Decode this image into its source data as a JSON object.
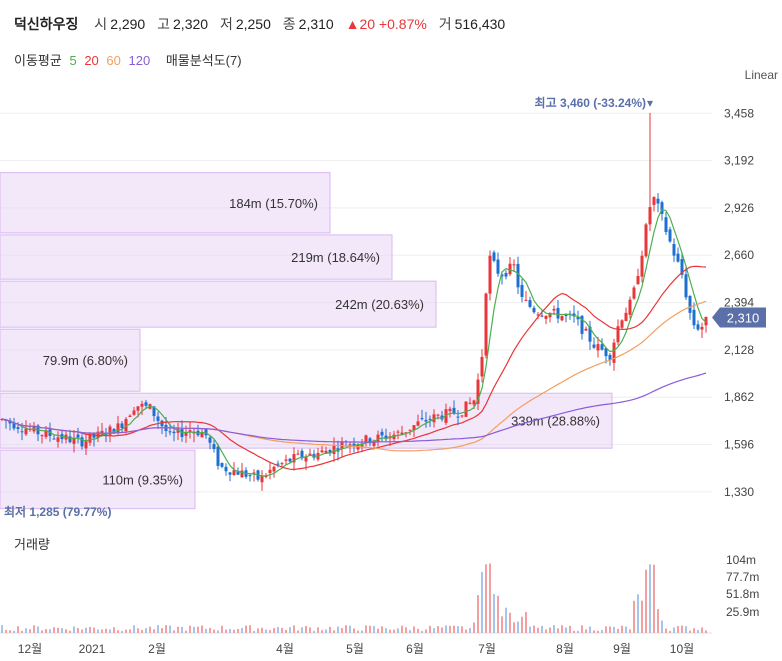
{
  "header": {
    "name": "덕신하우징",
    "open_label": "시",
    "open": "2,290",
    "high_label": "고",
    "high": "2,320",
    "low_label": "저",
    "low": "2,250",
    "close_label": "종",
    "close": "2,310",
    "change": "▲20 +0.87%",
    "volume_label": "거",
    "volume": "516,430"
  },
  "ma_legend": {
    "label": "이동평균",
    "ma5": "5",
    "ma20": "20",
    "ma60": "60",
    "ma120": "120",
    "profile": "매물분석도(7)"
  },
  "colors": {
    "up": "#e8363a",
    "down": "#1f6fd1",
    "ma5": "#4caf50",
    "ma20": "#e8363a",
    "ma60": "#f0a060",
    "ma120": "#8a5cd6",
    "profile": "#e9d4f5",
    "last_price_tag": "#5b6fa8"
  },
  "scale_label": "Linear",
  "volume_title": "거래량",
  "chart_data": {
    "type": "candlestick",
    "y_ticks": [
      "3,458",
      "3,192",
      "2,926",
      "2,660",
      "2,394",
      "2,128",
      "1,862",
      "1,596",
      "1,330"
    ],
    "ylim": [
      1200,
      3600
    ],
    "x_ticks": [
      "12월",
      "2021",
      "2월",
      "4월",
      "5월",
      "6월",
      "7월",
      "8월",
      "9월",
      "10월"
    ],
    "last_price": "2,310",
    "high_annotation": "최고 3,460 (-33.24%)",
    "low_annotation": "최저 1,285 (79.77%)",
    "volume_ticks": [
      "104m",
      "77.7m",
      "51.8m",
      "25.9m"
    ],
    "volume_profile": [
      {
        "price_low": 2780,
        "price_high": 3130,
        "label": "184m (15.70%)"
      },
      {
        "price_low": 2520,
        "price_high": 2780,
        "label": "219m (18.64%)"
      },
      {
        "price_low": 2250,
        "price_high": 2520,
        "label": "242m (20.63%)"
      },
      {
        "price_low": 1890,
        "price_high": 2250,
        "label": "79.9m (6.80%)"
      },
      {
        "price_low": 1570,
        "price_high": 1890,
        "label": "339m (28.88%)"
      },
      {
        "price_low": 1230,
        "price_high": 1570,
        "label": "110m (9.35%)"
      }
    ]
  }
}
